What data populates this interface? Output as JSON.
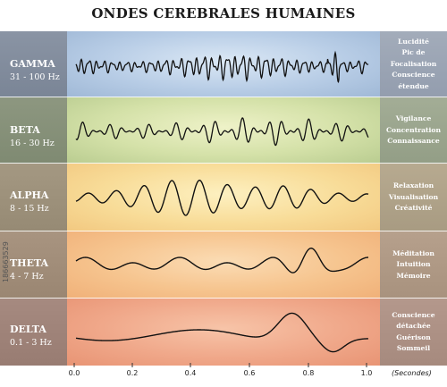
{
  "title": "ONDES CEREBRALES HUMAINES",
  "waves": [
    {
      "name": "GAMMA",
      "freq": "31 - 100 Hz",
      "desc": [
        "Lucidité",
        "Pic de",
        "Focalisation",
        "Conscience",
        "étendue"
      ]
    },
    {
      "name": "BETA",
      "freq": "16 - 30 Hz",
      "desc": [
        "Vigilance",
        "Concentration",
        "Connaissance"
      ]
    },
    {
      "name": "ALPHA",
      "freq": "8 - 15 Hz",
      "desc": [
        "Relaxation",
        "Visualisation",
        "Créativité"
      ]
    },
    {
      "name": "THETA",
      "freq": "4 - 7 Hz",
      "desc": [
        "Méditation",
        "Intuition",
        "Mémoire"
      ]
    },
    {
      "name": "DELTA",
      "freq": "0.1 - 3 Hz",
      "desc": [
        "Conscience",
        "détachée",
        "Guérison",
        "Sommeil"
      ]
    }
  ],
  "axis": {
    "ticks": [
      "0.0",
      "0.2",
      "0.4",
      "0.6",
      "0.8",
      "1.0"
    ],
    "unit": "(Secondes)"
  },
  "watermark": "186663529",
  "colors": {
    "gamma": "#a9c4e0",
    "beta": "#c6d8a4",
    "alpha": "#f7d792",
    "theta": "#f6c48e",
    "delta": "#f0a88a",
    "wave": "#111111"
  }
}
